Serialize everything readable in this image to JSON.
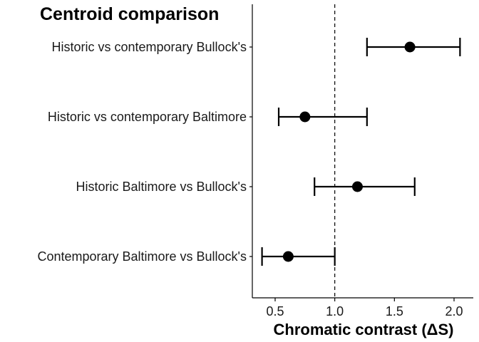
{
  "chart_data": {
    "type": "forest",
    "title": "Centroid comparison",
    "xlabel": "Chromatic contrast (ΔS)",
    "ylabel": "",
    "xlim": [
      0.3,
      2.15
    ],
    "x_ticks": [
      0.5,
      1.0,
      1.5,
      2.0
    ],
    "x_tick_labels": [
      "0.5",
      "1.0",
      "1.5",
      "2.0"
    ],
    "reference_line": 1.0,
    "categories": [
      "Historic vs contemporary Bullock's",
      "Historic vs contemporary Baltimore",
      "Historic Baltimore vs Bullock's",
      "Contemporary Baltimore vs Bullock's"
    ],
    "estimates": [
      1.63,
      0.75,
      1.19,
      0.61
    ],
    "lower": [
      1.27,
      0.53,
      0.83,
      0.39
    ],
    "upper": [
      2.05,
      1.27,
      1.67,
      1.0
    ],
    "grid": false,
    "legend": "none",
    "colors": {
      "point": "#000000",
      "line": "#000000",
      "reference_line": "#000000",
      "axis": "#000000",
      "text": "#1a1a1a"
    }
  }
}
